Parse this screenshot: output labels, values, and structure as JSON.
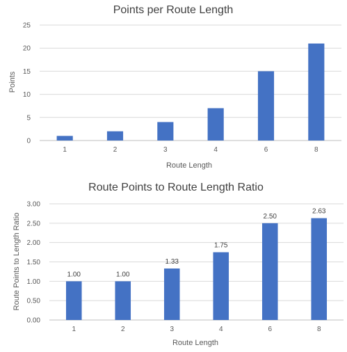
{
  "accent_color": "#4472c4",
  "chart_data": [
    {
      "type": "bar",
      "title": "Points per Route Length",
      "xlabel": "Route Length",
      "ylabel": "Points",
      "categories": [
        "1",
        "2",
        "3",
        "4",
        "6",
        "8"
      ],
      "values": [
        1,
        2,
        4,
        7,
        15,
        21
      ],
      "ylim": [
        0,
        25
      ],
      "yticks": [
        "0",
        "5",
        "10",
        "15",
        "20",
        "25"
      ],
      "grid": true,
      "data_labels": false
    },
    {
      "type": "bar",
      "title": "Route Points to Route Length Ratio",
      "xlabel": "Route Length",
      "ylabel": "Route Points to Length Ratio",
      "categories": [
        "1",
        "2",
        "3",
        "4",
        "6",
        "8"
      ],
      "values": [
        1.0,
        1.0,
        1.33,
        1.75,
        2.5,
        2.63
      ],
      "value_labels": [
        "1.00",
        "1.00",
        "1.33",
        "1.75",
        "2.50",
        "2.63"
      ],
      "ylim": [
        0,
        3
      ],
      "yticks": [
        "0.00",
        "0.50",
        "1.00",
        "1.50",
        "2.00",
        "2.50",
        "3.00"
      ],
      "grid": true,
      "data_labels": true
    }
  ]
}
